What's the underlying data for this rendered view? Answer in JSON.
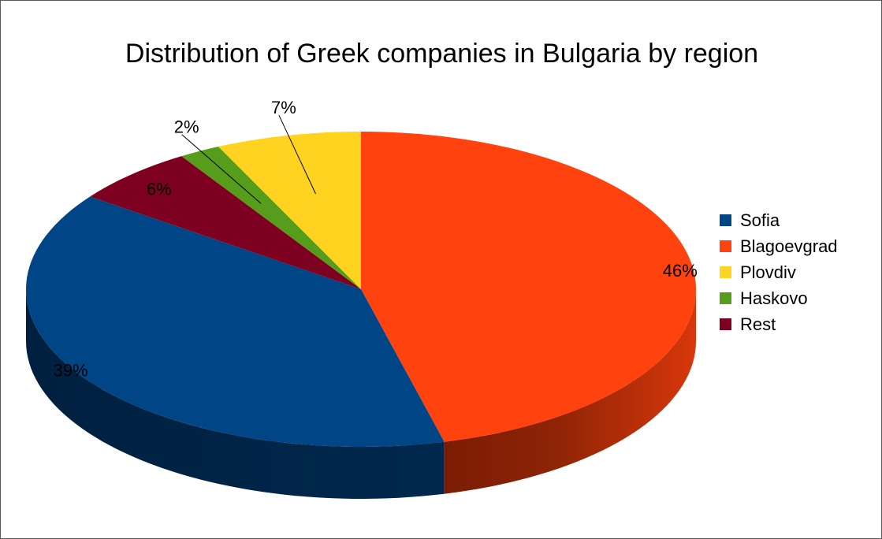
{
  "chart_data": {
    "type": "pie",
    "style": "3d",
    "title": "Distribution of Greek companies in Bulgaria by region",
    "start_angle_deg": 0,
    "direction": "clockwise",
    "legend_position": "right",
    "slices": [
      {
        "name": "Blagoevgrad",
        "value": 46,
        "label": "46%",
        "color": "#FF420E"
      },
      {
        "name": "Sofia",
        "value": 39,
        "label": "39%",
        "color": "#004586"
      },
      {
        "name": "Rest",
        "value": 6,
        "label": "6%",
        "color": "#7E0021"
      },
      {
        "name": "Haskovo",
        "value": 2,
        "label": "2%",
        "color": "#579D1C"
      },
      {
        "name": "Plovdiv",
        "value": 7,
        "label": "7%",
        "color": "#FFD320"
      }
    ],
    "legend": [
      {
        "name": "Sofia",
        "color": "#004586"
      },
      {
        "name": "Blagoevgrad",
        "color": "#FF420E"
      },
      {
        "name": "Plovdiv",
        "color": "#FFD320"
      },
      {
        "name": "Haskovo",
        "color": "#579D1C"
      },
      {
        "name": "Rest",
        "color": "#7E0021"
      }
    ]
  }
}
